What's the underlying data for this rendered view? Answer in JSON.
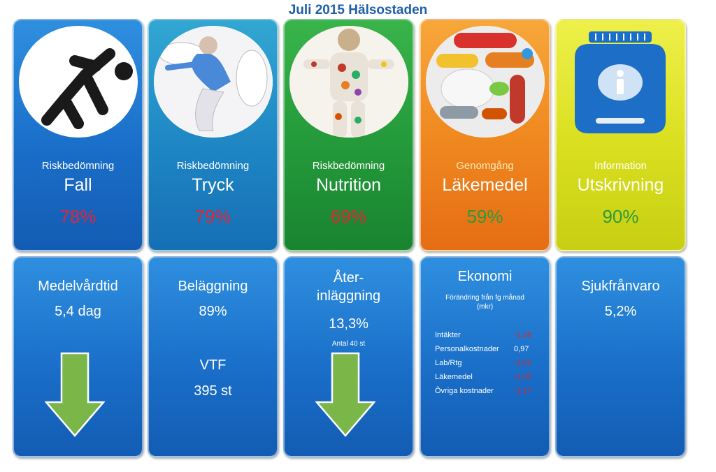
{
  "title": "Juli 2015 Hälsostaden",
  "top_cards": [
    {
      "subtitle": "Riskbedömning",
      "heading": "Fall",
      "percent": "78%",
      "percent_color": "#e0253a",
      "icon": "falling-person-icon"
    },
    {
      "subtitle": "Riskbedömning",
      "heading": "Tryck",
      "percent": "79%",
      "percent_color": "#e0253a",
      "icon": "sleeping-person-icon"
    },
    {
      "subtitle": "Riskbedömning",
      "heading": "Nutrition",
      "percent": "69%",
      "percent_color": "#e0253a",
      "icon": "food-body-icon"
    },
    {
      "subtitle": "Genomgång",
      "heading": "Läkemedel",
      "percent": "59%",
      "percent_color": "#2e9a3a",
      "icon": "pills-icon"
    },
    {
      "subtitle": "Information",
      "heading": "Utskrivning",
      "percent": "90%",
      "percent_color": "#2e9a3a",
      "icon": "info-jar-icon"
    }
  ],
  "bottom_cards": {
    "vardtid": {
      "title": "Medelvårdtid",
      "value": "5,4 dag",
      "trend": "down"
    },
    "belaggning": {
      "title": "Beläggning",
      "value": "89%",
      "vtf_label": "VTF",
      "vtf_value": "395 st"
    },
    "aterlaggning": {
      "title_line1": "Åter-",
      "title_line2": "inläggning",
      "value": "13,3%",
      "note": "Antal 40 st",
      "trend": "down"
    },
    "ekonomi": {
      "title": "Ekonomi",
      "subtitle_line1": "Förändring från fg månad",
      "subtitle_line2": "(mkr)",
      "rows": [
        {
          "label": "Intäkter",
          "value": "-1,28",
          "negative": true
        },
        {
          "label": "Personalkostnader",
          "value": "0,97",
          "negative": false
        },
        {
          "label": "Lab/Rtg",
          "value": "-1,01",
          "negative": true
        },
        {
          "label": "Läkemedel",
          "value": "-1,05",
          "negative": true
        },
        {
          "label": "Övriga kostnader",
          "value": "-1,17",
          "negative": true
        }
      ]
    },
    "sjuk": {
      "title": "Sjukfrånvaro",
      "value": "5,2%"
    }
  },
  "colors": {
    "title": "#1f5fa8",
    "blue": "#1a6fc9",
    "teal": "#1e86c4",
    "green": "#23993a",
    "orange": "#ef861e",
    "yellow": "#d9df1e",
    "arrow": "#7ab648"
  }
}
